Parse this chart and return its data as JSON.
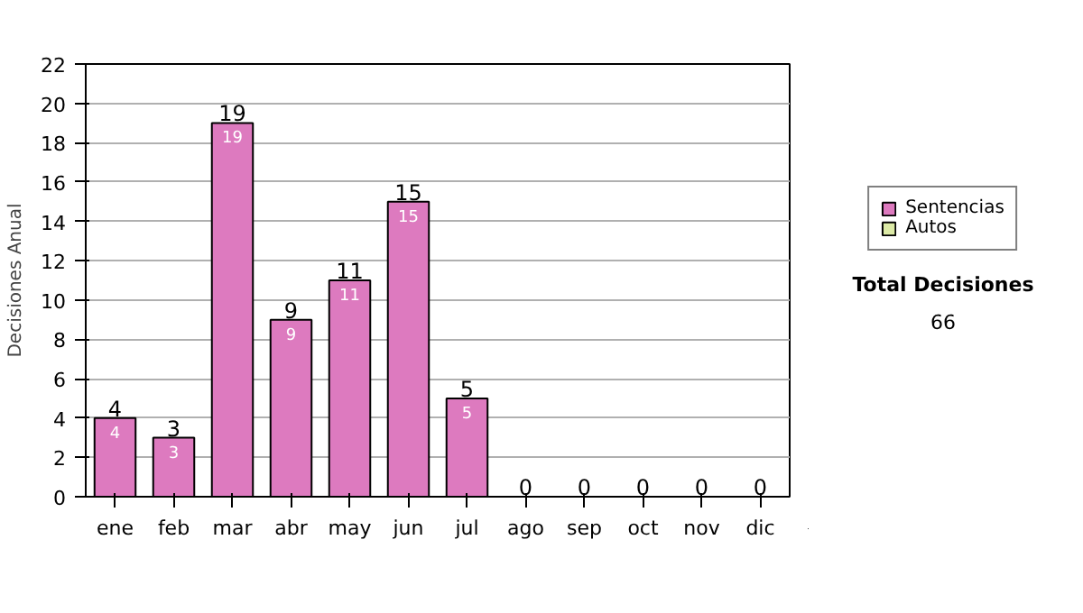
{
  "chart_data": {
    "type": "bar",
    "ylabel": "Decisiones Anual",
    "categories": [
      "ene",
      "feb",
      "mar",
      "abr",
      "may",
      "jun",
      "jul",
      "ago",
      "sep",
      "oct",
      "nov",
      "dic"
    ],
    "stacked": true,
    "series": [
      {
        "name": "Sentencias",
        "color": "#dd7abf",
        "values": [
          4,
          3,
          19,
          9,
          11,
          15,
          5,
          0,
          0,
          0,
          0,
          0
        ],
        "value_labels": [
          "4",
          "3",
          "19",
          "9",
          "11",
          "15",
          "5",
          null,
          null,
          null,
          null,
          null
        ]
      },
      {
        "name": "Autos",
        "color": "#dceaa6",
        "values": [
          0,
          0,
          0,
          0,
          0,
          0,
          0,
          0,
          0,
          0,
          0,
          0
        ]
      }
    ],
    "totals": [
      "4",
      "3",
      "19",
      "9",
      "11",
      "15",
      "5",
      "0",
      "0",
      "0",
      "0",
      "0"
    ],
    "ylim": [
      0,
      22
    ],
    "yticks": [
      0,
      2,
      4,
      6,
      8,
      10,
      12,
      14,
      16,
      18,
      20,
      22
    ],
    "grid": "y",
    "legend": "right",
    "annotations": [
      "Total Decisiones",
      "66"
    ]
  }
}
